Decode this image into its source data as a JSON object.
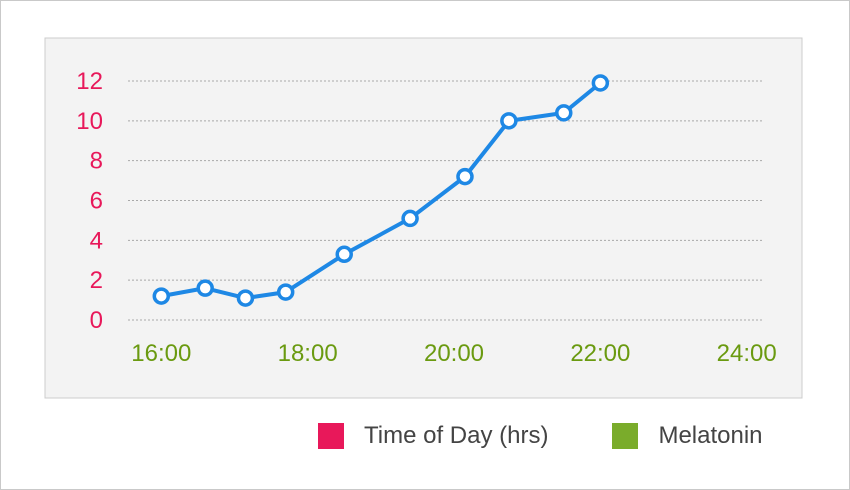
{
  "chart_data": {
    "type": "line",
    "x_ticks": [
      "16:00",
      "18:00",
      "20:00",
      "22:00",
      "24:00"
    ],
    "x_tick_values": [
      16,
      18,
      20,
      22,
      24
    ],
    "xlim": [
      15.75,
      24.25
    ],
    "y_ticks": [
      0,
      2,
      4,
      6,
      8,
      10,
      12
    ],
    "ylim": [
      0,
      12
    ],
    "grid": true,
    "series": [
      {
        "x": [
          16.0,
          16.6,
          17.15,
          17.7,
          18.5,
          19.4,
          20.15,
          20.75,
          21.5,
          22.0
        ],
        "y": [
          1.2,
          1.6,
          1.1,
          1.4,
          3.3,
          5.1,
          7.2,
          10.0,
          10.4,
          11.9
        ]
      }
    ],
    "legend": [
      {
        "label": "Time of Day (hrs)",
        "color": "#e8185a"
      },
      {
        "label": "Melatonin",
        "color": "#7aac2b"
      }
    ],
    "legend_position": "bottom-right"
  },
  "colors": {
    "line": "#1e88e5",
    "marker_fill": "#ffffff",
    "y_tick_text": "#e8185a",
    "x_tick_text": "#6a9a10",
    "grid": "#a8a8a8",
    "plot_bg": "#f3f3f3",
    "plot_border": "#cccccc"
  }
}
